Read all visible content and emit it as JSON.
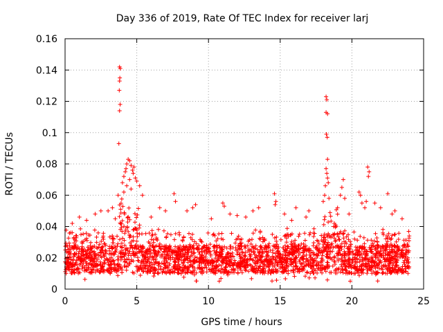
{
  "chart_data": {
    "type": "scatter",
    "title": "Day 336 of 2019, Rate Of TEC Index for receiver larj",
    "xlabel": "GPS time / hours",
    "ylabel": "ROTI / TECUs",
    "xlim": [
      0,
      25
    ],
    "ylim": [
      0,
      0.16
    ],
    "x_ticks": [
      0,
      5,
      10,
      15,
      20,
      25
    ],
    "x_tick_labels": [
      "0",
      "5",
      "10",
      "15",
      "20",
      "25"
    ],
    "y_ticks": [
      0,
      0.02,
      0.04,
      0.06,
      0.08,
      0.1,
      0.12,
      0.14,
      0.16
    ],
    "y_tick_labels": [
      "0",
      "0.02",
      "0.04",
      "0.06",
      "0.08",
      "0.1",
      "0.12",
      "0.14",
      "0.16"
    ],
    "grid": true,
    "marker": "+",
    "series_color": "#ff0000",
    "data_x_range": [
      0,
      24
    ],
    "band": {
      "low": 0.01,
      "high": 0.028
    },
    "points": [
      [
        3.8,
        0.142
      ],
      [
        3.85,
        0.141
      ],
      [
        3.82,
        0.135
      ],
      [
        3.8,
        0.133
      ],
      [
        3.78,
        0.127
      ],
      [
        3.84,
        0.118
      ],
      [
        3.8,
        0.114
      ],
      [
        3.75,
        0.093
      ],
      [
        4.0,
        0.068
      ],
      [
        4.1,
        0.072
      ],
      [
        4.2,
        0.075
      ],
      [
        4.3,
        0.08
      ],
      [
        4.4,
        0.083
      ],
      [
        4.5,
        0.082
      ],
      [
        4.6,
        0.079
      ],
      [
        4.7,
        0.076
      ],
      [
        4.8,
        0.078
      ],
      [
        4.5,
        0.07
      ],
      [
        4.3,
        0.066
      ],
      [
        4.9,
        0.071
      ],
      [
        5.0,
        0.069
      ],
      [
        5.2,
        0.066
      ],
      [
        4.6,
        0.064
      ],
      [
        5.4,
        0.06
      ],
      [
        3.7,
        0.06
      ],
      [
        4.1,
        0.062
      ],
      [
        4.75,
        0.074
      ],
      [
        4.25,
        0.077
      ],
      [
        2.1,
        0.048
      ],
      [
        2.5,
        0.05
      ],
      [
        3.0,
        0.05
      ],
      [
        3.3,
        0.052
      ],
      [
        3.5,
        0.045
      ],
      [
        6.6,
        0.052
      ],
      [
        7.0,
        0.05
      ],
      [
        7.6,
        0.061
      ],
      [
        7.7,
        0.056
      ],
      [
        8.5,
        0.05
      ],
      [
        8.9,
        0.052
      ],
      [
        9.1,
        0.054
      ],
      [
        11.0,
        0.055
      ],
      [
        11.1,
        0.053
      ],
      [
        11.5,
        0.048
      ],
      [
        12.0,
        0.047
      ],
      [
        13.1,
        0.05
      ],
      [
        13.5,
        0.052
      ],
      [
        14.6,
        0.061
      ],
      [
        14.7,
        0.056
      ],
      [
        14.65,
        0.054
      ],
      [
        15.3,
        0.048
      ],
      [
        16.1,
        0.052
      ],
      [
        17.0,
        0.05
      ],
      [
        18.2,
        0.123
      ],
      [
        18.25,
        0.121
      ],
      [
        18.2,
        0.113
      ],
      [
        18.3,
        0.112
      ],
      [
        18.22,
        0.099
      ],
      [
        18.28,
        0.097
      ],
      [
        18.3,
        0.083
      ],
      [
        18.2,
        0.077
      ],
      [
        18.25,
        0.074
      ],
      [
        18.3,
        0.071
      ],
      [
        18.15,
        0.066
      ],
      [
        18.35,
        0.068
      ],
      [
        18.1,
        0.06
      ],
      [
        18.4,
        0.058
      ],
      [
        18.0,
        0.056
      ],
      [
        19.3,
        0.065
      ],
      [
        19.4,
        0.07
      ],
      [
        19.2,
        0.06
      ],
      [
        19.5,
        0.058
      ],
      [
        19.0,
        0.052
      ],
      [
        20.5,
        0.062
      ],
      [
        20.6,
        0.06
      ],
      [
        20.7,
        0.055
      ],
      [
        21.1,
        0.078
      ],
      [
        21.2,
        0.075
      ],
      [
        21.15,
        0.072
      ],
      [
        21.0,
        0.056
      ],
      [
        21.6,
        0.055
      ],
      [
        22.0,
        0.052
      ],
      [
        22.5,
        0.061
      ],
      [
        23.0,
        0.05
      ],
      [
        23.5,
        0.045
      ],
      [
        1.0,
        0.046
      ],
      [
        1.5,
        0.044
      ],
      [
        0.5,
        0.042
      ],
      [
        6.0,
        0.046
      ],
      [
        10.2,
        0.045
      ],
      [
        12.6,
        0.046
      ],
      [
        16.8,
        0.046
      ],
      [
        19.8,
        0.048
      ],
      [
        22.8,
        0.048
      ],
      [
        20.9,
        0.052
      ],
      [
        15.8,
        0.044
      ]
    ]
  }
}
